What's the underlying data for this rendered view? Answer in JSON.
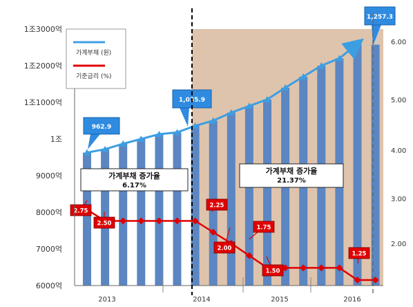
{
  "chart_data": {
    "type": "bar",
    "x_labels": [
      "2013",
      "2014",
      "2015",
      "2016"
    ],
    "y_left": {
      "ticks": [
        "6000억",
        "7000억",
        "8000억",
        "9000억",
        "1조",
        "1조1000억",
        "1조2000억",
        "1조3000억"
      ],
      "ylim": [
        6000,
        13300
      ]
    },
    "y_right": {
      "ticks": [
        "2.00",
        "3.00",
        "4.00",
        "5.00",
        "6.00"
      ],
      "ylim": [
        1.25,
        6.45
      ]
    },
    "household_debt": {
      "name": "가계부채 (원)",
      "values": [
        9629,
        9720,
        9870,
        10000,
        10130,
        10180,
        10359,
        10500,
        10720,
        10900,
        11080,
        11400,
        11700,
        12000,
        12200,
        12600,
        12573
      ]
    },
    "base_rate": {
      "name": "기준금리 (%)",
      "values": [
        2.75,
        2.5,
        2.5,
        2.5,
        2.5,
        2.5,
        2.5,
        2.25,
        2.0,
        1.75,
        1.5,
        1.5,
        1.5,
        1.5,
        1.5,
        1.25,
        1.25
      ]
    },
    "callouts_debt": [
      {
        "index": 0,
        "label": "962.9"
      },
      {
        "index": 6,
        "label": "1,035.9"
      },
      {
        "index": 16,
        "label": "1,257.3"
      }
    ],
    "callouts_rate": [
      {
        "index": 0,
        "label": "2.75"
      },
      {
        "index": 1,
        "label": "2.50"
      },
      {
        "index": 7,
        "label": "2.25"
      },
      {
        "index": 8,
        "label": "2.00"
      },
      {
        "index": 9,
        "label": "1.75"
      },
      {
        "index": 10,
        "label": "1.50"
      },
      {
        "index": 15,
        "label": "1.25"
      }
    ],
    "annotations": [
      {
        "title": "가계부채 증가율",
        "value": "6.17%"
      },
      {
        "title": "가계부채 증가율",
        "value": "21.37%"
      }
    ],
    "legend_position": "top-left",
    "colors": {
      "bar": "#5b86c2",
      "debt_line": "#3c9fe3",
      "rate_line": "#e00000",
      "shade": "#dec4ad",
      "callout_blue": "#2f8be0",
      "callout_red": "#e00000"
    }
  }
}
